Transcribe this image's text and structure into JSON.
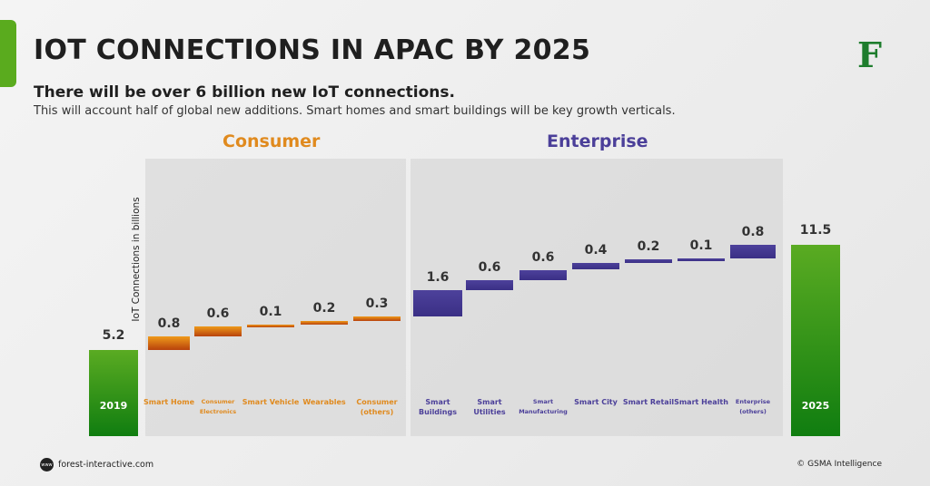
{
  "header": {
    "title": "IOT CONNECTIONS IN APAC BY 2025",
    "subtitle": "There will be over 6 billion new IoT connections.",
    "description": "This will account half of global new additions. Smart homes and smart buildings will be key growth verticals.",
    "logo_letter": "F"
  },
  "footer": {
    "website": "forest-interactive.com",
    "www_icon": "www",
    "source": "© GSMA Intelligence"
  },
  "chart_data": {
    "type": "waterfall",
    "ylabel": "IoT Connections in billions",
    "groups": [
      {
        "name": "Consumer",
        "color": "#e08a1e"
      },
      {
        "name": "Enterprise",
        "color": "#4b3f99"
      }
    ],
    "start": {
      "label": "2019",
      "value": 5.2,
      "color": "#4a9e1c"
    },
    "steps": [
      {
        "category": "Smart Home",
        "value": 0.8,
        "group": 0
      },
      {
        "category": "Consumer Electronics",
        "value": 0.6,
        "group": 0
      },
      {
        "category": "Smart Vehicle",
        "value": 0.1,
        "group": 0
      },
      {
        "category": "Wearables",
        "value": 0.2,
        "group": 0
      },
      {
        "category": "Consumer (others)",
        "value": 0.3,
        "group": 0
      },
      {
        "category": "Smart Buildings",
        "value": 1.6,
        "group": 1
      },
      {
        "category": "Smart Utilities",
        "value": 0.6,
        "group": 1
      },
      {
        "category": "Smart Manufacturing",
        "value": 0.6,
        "group": 1
      },
      {
        "category": "Smart City",
        "value": 0.4,
        "group": 1
      },
      {
        "category": "Smart Retail",
        "value": 0.2,
        "group": 1
      },
      {
        "category": "Smart Health",
        "value": 0.1,
        "group": 1
      },
      {
        "category": "Enterprise (others)",
        "value": 0.8,
        "group": 1
      }
    ],
    "end": {
      "label": "2025",
      "value": 11.5,
      "color": "#4a9e1c"
    },
    "value_format": "one decimal",
    "grid": false
  }
}
